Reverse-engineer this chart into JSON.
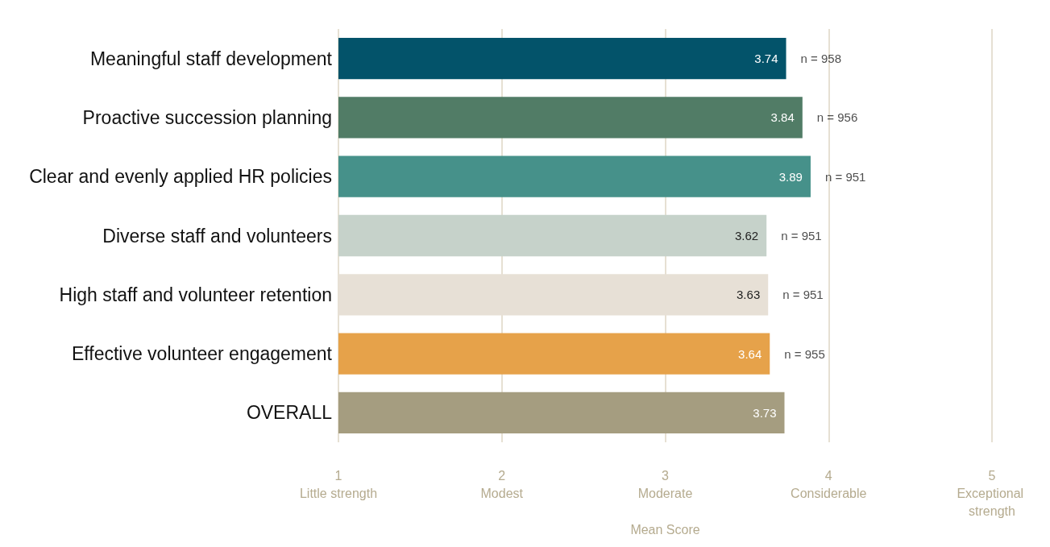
{
  "chart_data": {
    "type": "bar",
    "orientation": "horizontal",
    "xlabel": "Mean Score",
    "categories": [
      "Meaningful staff development",
      "Proactive succession planning",
      "Clear and evenly applied HR policies",
      "Diverse staff and volunteers",
      "High staff and volunteer retention",
      "Effective volunteer engagement",
      "OVERALL"
    ],
    "values": [
      3.74,
      3.84,
      3.89,
      3.62,
      3.63,
      3.64,
      3.73
    ],
    "colors": [
      "#03536a",
      "#517c66",
      "#46918a",
      "#c6d2ca",
      "#e7e0d6",
      "#e6a24a",
      "#a59d80"
    ],
    "data_labels": true,
    "xlim": [
      1,
      5
    ],
    "xticks": [
      {
        "value": 1,
        "label": "1\nLittle strength"
      },
      {
        "value": 2,
        "label": "2\nModest"
      },
      {
        "value": 3,
        "label": "3\nModerate"
      },
      {
        "value": 4,
        "label": "4\nConsiderable"
      },
      {
        "value": 5,
        "label": "5\nExceptional strength"
      }
    ],
    "grid": "x",
    "annotations": [
      "n = 958",
      "n = 956",
      "n = 951",
      "n = 951",
      "n = 951",
      "n = 955"
    ]
  }
}
